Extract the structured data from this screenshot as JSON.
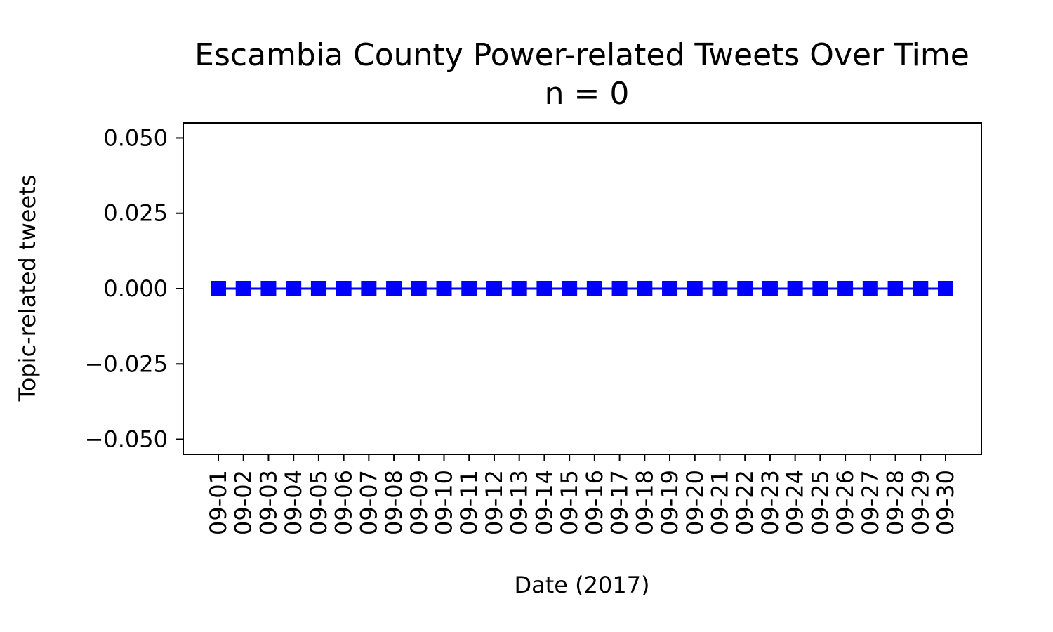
{
  "chart_data": {
    "type": "line",
    "title": "Escambia County Power-related Tweets Over Time",
    "subtitle": "n = 0",
    "xlabel": "Date (2017)",
    "ylabel": "Topic-related tweets",
    "categories": [
      "09-01",
      "09-02",
      "09-03",
      "09-04",
      "09-05",
      "09-06",
      "09-07",
      "09-08",
      "09-09",
      "09-10",
      "09-11",
      "09-12",
      "09-13",
      "09-14",
      "09-15",
      "09-16",
      "09-17",
      "09-18",
      "09-19",
      "09-20",
      "09-21",
      "09-22",
      "09-23",
      "09-24",
      "09-25",
      "09-26",
      "09-27",
      "09-28",
      "09-29",
      "09-30"
    ],
    "series": [
      {
        "color": "#0000ff",
        "marker": "square",
        "values": [
          0,
          0,
          0,
          0,
          0,
          0,
          0,
          0,
          0,
          0,
          0,
          0,
          0,
          0,
          0,
          0,
          0,
          0,
          0,
          0,
          0,
          0,
          0,
          0,
          0,
          0,
          0,
          0,
          0,
          0
        ]
      }
    ],
    "ylim": [
      -0.055,
      0.055
    ],
    "yticks": [
      -0.05,
      -0.025,
      0,
      0.025,
      0.05
    ],
    "ytick_labels": [
      "−0.050",
      "−0.025",
      "0.000",
      "0.025",
      "0.050"
    ],
    "grid": false,
    "legend": "none"
  }
}
